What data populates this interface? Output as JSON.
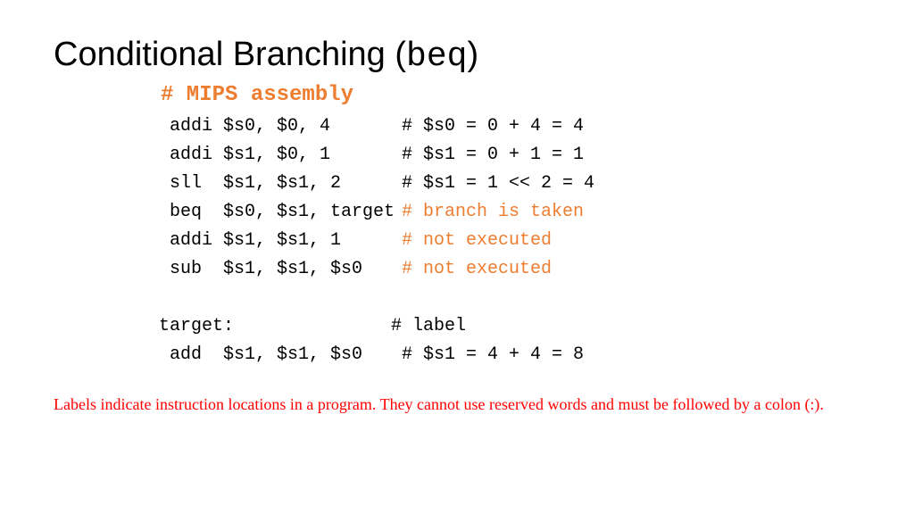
{
  "title_prefix": "Conditional Branching (",
  "title_mono": "beq",
  "title_suffix": ")",
  "header_comment": "# MIPS assembly",
  "lines": [
    {
      "instr": "addi $s0, $0, 4",
      "comment": "# $s0 = 0 + 4 = 4",
      "orange": false
    },
    {
      "instr": "addi $s1, $0, 1",
      "comment": "# $s1 = 0 + 1 = 1",
      "orange": false
    },
    {
      "instr": "sll  $s1, $s1, 2",
      "comment": "# $s1 = 1 << 2 = 4",
      "orange": false
    },
    {
      "instr": "beq  $s0, $s1, target",
      "comment": "# branch is taken",
      "orange": true
    },
    {
      "instr": "addi $s1, $s1, 1",
      "comment": "# not executed",
      "orange": true
    },
    {
      "instr": "sub  $s1, $s1, $s0",
      "comment": "# not executed",
      "orange": true
    }
  ],
  "label_line": {
    "instr": "target:",
    "comment": "# label",
    "orange": false
  },
  "after_label": {
    "instr": "add  $s1, $s1, $s0",
    "comment": "# $s1 = 4 + 4 = 8",
    "orange": false
  },
  "footnote": "Labels indicate instruction locations in a program. They cannot use reserved words and must be followed by a colon (:).",
  "colors": {
    "text": "#000000",
    "accent_orange": "#ed7d31",
    "footnote_red": "#ff0000",
    "background": "#ffffff"
  },
  "fonts": {
    "title_family": "Segoe UI Light",
    "title_size_pt": 28,
    "mono_family": "Courier New",
    "code_size_pt": 15,
    "header_size_pt": 18,
    "footnote_family": "Times New Roman",
    "footnote_size_pt": 13
  }
}
